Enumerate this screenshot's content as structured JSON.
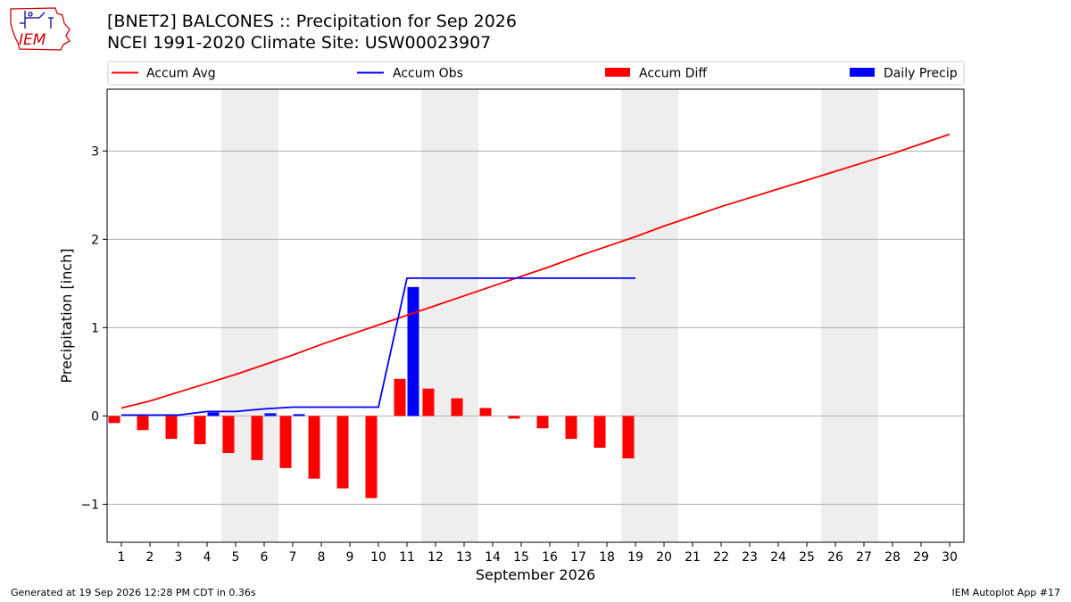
{
  "header": {
    "title_line1": "[BNET2] BALCONES :: Precipitation for Sep 2026",
    "title_line2": "NCEI 1991-2020 Climate Site: USW00023907",
    "logo_text": "IEM"
  },
  "footer": {
    "generated": "Generated at 19 Sep 2026 12:28 PM CDT in 0.36s",
    "app": "IEM Autoplot App #17"
  },
  "colors": {
    "avg": "#ff0000",
    "obs": "#0000ff",
    "diff": "#ff0000",
    "daily": "#0000ff",
    "weekend_band": "#eeeeee",
    "grid": "#b0b0b0"
  },
  "chart_data": {
    "type": "bar",
    "xlabel": "September 2026",
    "ylabel": "Precipitation [inch]",
    "xlim": [
      0.5,
      30.5
    ],
    "ylim": [
      -1.43,
      3.7
    ],
    "yticks": [
      -1,
      0,
      1,
      2,
      3
    ],
    "ytick_labels": [
      "−1",
      "0",
      "1",
      "2",
      "3"
    ],
    "days": [
      1,
      2,
      3,
      4,
      5,
      6,
      7,
      8,
      9,
      10,
      11,
      12,
      13,
      14,
      15,
      16,
      17,
      18,
      19,
      20,
      21,
      22,
      23,
      24,
      25,
      26,
      27,
      28,
      29,
      30
    ],
    "grid": true,
    "legend": {
      "placement": "top",
      "entries": [
        "Accum Avg",
        "Accum Obs",
        "Accum Diff",
        "Daily Precip"
      ]
    },
    "weekend_bands": [
      [
        4.5,
        6.5
      ],
      [
        11.5,
        13.5
      ],
      [
        18.5,
        20.5
      ],
      [
        25.5,
        27.5
      ]
    ],
    "series": [
      {
        "name": "Accum Avg",
        "kind": "line",
        "x": [
          1,
          2,
          3,
          4,
          5,
          6,
          7,
          8,
          9,
          10,
          11,
          12,
          13,
          14,
          15,
          16,
          17,
          18,
          19,
          20,
          21,
          22,
          23,
          24,
          25,
          26,
          27,
          28,
          29,
          30
        ],
        "values": [
          0.09,
          0.17,
          0.27,
          0.37,
          0.47,
          0.58,
          0.69,
          0.81,
          0.92,
          1.03,
          1.14,
          1.25,
          1.36,
          1.47,
          1.58,
          1.69,
          1.81,
          1.92,
          2.03,
          2.15,
          2.26,
          2.37,
          2.47,
          2.57,
          2.67,
          2.77,
          2.87,
          2.97,
          3.08,
          3.19
        ]
      },
      {
        "name": "Accum Obs",
        "kind": "line",
        "x": [
          1,
          2,
          3,
          4,
          5,
          6,
          7,
          8,
          9,
          10,
          11,
          12,
          13,
          14,
          15,
          16,
          17,
          18,
          19
        ],
        "values": [
          0.01,
          0.01,
          0.01,
          0.05,
          0.05,
          0.08,
          0.1,
          0.1,
          0.1,
          0.1,
          1.56,
          1.56,
          1.56,
          1.56,
          1.56,
          1.56,
          1.56,
          1.56,
          1.56
        ]
      },
      {
        "name": "Accum Diff",
        "kind": "bar",
        "x": [
          1,
          2,
          3,
          4,
          5,
          6,
          7,
          8,
          9,
          10,
          11,
          12,
          13,
          14,
          15,
          16,
          17,
          18,
          19
        ],
        "values": [
          -0.08,
          -0.16,
          -0.26,
          -0.32,
          -0.42,
          -0.5,
          -0.59,
          -0.71,
          -0.82,
          -0.93,
          0.42,
          0.31,
          0.2,
          0.09,
          -0.03,
          -0.14,
          -0.26,
          -0.36,
          -0.48
        ]
      },
      {
        "name": "Daily Precip",
        "kind": "bar",
        "x": [
          4,
          6,
          7,
          11
        ],
        "values": [
          0.04,
          0.03,
          0.02,
          1.46
        ]
      }
    ]
  }
}
